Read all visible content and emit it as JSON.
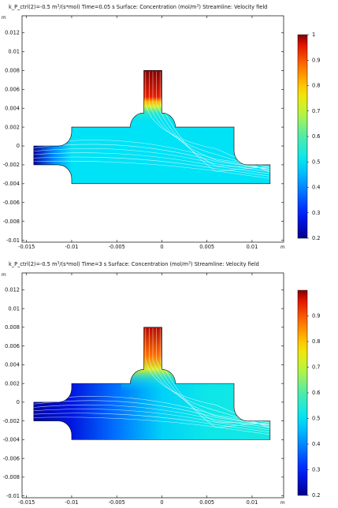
{
  "chart_data": [
    {
      "type": "heatmap",
      "title_prefix": "k_P_ctrl(2)=-0.5 m",
      "title_sup": "3",
      "title_suffix": "/(s*mol) Time=0.05 s  Surface: Concentration (mol/m",
      "title_end": ")  Streamline: Velocity field",
      "x_unit": "m",
      "y_unit": "m",
      "xlim": [
        -0.0155,
        0.0135
      ],
      "ylim": [
        -0.0102,
        0.0138
      ],
      "xticks": [
        -0.015,
        -0.01,
        -0.005,
        0,
        0.005,
        0.01
      ],
      "xtick_labels": [
        "-0.015",
        "-0.01",
        "-0.005",
        "0",
        "0.005",
        "0.01"
      ],
      "yticks": [
        0.012,
        0.01,
        0.008,
        0.006,
        0.004,
        0.002,
        0,
        -0.002,
        -0.004,
        -0.006,
        -0.008,
        -0.01
      ],
      "ytick_labels": [
        "0.012",
        "0.01",
        "0.008",
        "0.006",
        "0.004",
        "0.002",
        "0",
        "-0.002",
        "-0.004",
        "-0.006",
        "-0.008",
        "-0.01"
      ],
      "colorbar": {
        "min": 0.2,
        "max": 1.0,
        "ticks": [
          1,
          0.9,
          0.8,
          0.7,
          0.6,
          0.5,
          0.4,
          0.3,
          0.2
        ],
        "tick_labels": [
          "1",
          "0.9",
          "0.8",
          "0.7",
          "0.6",
          "0.5",
          "0.4",
          "0.3",
          "0.2"
        ]
      },
      "channel_field": [
        {
          "x": -0.0142,
          "c": 0.22
        },
        {
          "x": -0.012,
          "c": 0.4
        },
        {
          "x": -0.01,
          "c": 0.5
        },
        {
          "x": 0.0,
          "c": 0.5
        },
        {
          "x": 0.012,
          "c": 0.5
        }
      ],
      "inlet_field": [
        {
          "y": 0.008,
          "c": 1.0
        },
        {
          "y": 0.0052,
          "c": 0.95
        },
        {
          "y": 0.0047,
          "c": 0.82
        },
        {
          "y": 0.0042,
          "c": 0.72
        },
        {
          "y": 0.0035,
          "c": 0.55
        },
        {
          "y": 0.0025,
          "c": 0.5
        }
      ]
    },
    {
      "type": "heatmap",
      "title_prefix": "k_P_ctrl(2)=-0.5 m",
      "title_sup": "3",
      "title_suffix": "/(s*mol) Time=3 s  Surface: Concentration (mol/m",
      "title_end": ")  Streamline: Velocity field",
      "x_unit": "m",
      "y_unit": "m",
      "xlim": [
        -0.0155,
        0.0135
      ],
      "ylim": [
        -0.0102,
        0.0138
      ],
      "xticks": [
        -0.015,
        -0.01,
        -0.005,
        0,
        0.005,
        0.01
      ],
      "xtick_labels": [
        "-0.015",
        "-0.01",
        "-0.005",
        "0",
        "0.005",
        "0.01"
      ],
      "yticks": [
        0.012,
        0.01,
        0.008,
        0.006,
        0.004,
        0.002,
        0,
        -0.002,
        -0.004,
        -0.006,
        -0.008,
        -0.01
      ],
      "ytick_labels": [
        "0.012",
        "0.01",
        "0.008",
        "0.006",
        "0.004",
        "0.002",
        "0",
        "-0.002",
        "-0.004",
        "-0.006",
        "-0.008",
        "-0.01"
      ],
      "colorbar": {
        "min": 0.2,
        "max": 1.0,
        "ticks": [
          0.9,
          0.8,
          0.7,
          0.6,
          0.5,
          0.4,
          0.3,
          0.2
        ],
        "tick_labels": [
          "0.9",
          "0.8",
          "0.7",
          "0.6",
          "0.5",
          "0.4",
          "0.3",
          "0.2"
        ]
      },
      "channel_field": [
        {
          "x": -0.0142,
          "c": 0.22
        },
        {
          "x": -0.01,
          "c": 0.27
        },
        {
          "x": -0.005,
          "c": 0.38
        },
        {
          "x": 0.0,
          "c": 0.48
        },
        {
          "x": 0.005,
          "c": 0.52
        },
        {
          "x": 0.012,
          "c": 0.53
        }
      ],
      "inlet_field": [
        {
          "y": 0.008,
          "c": 0.98
        },
        {
          "y": 0.005,
          "c": 0.88
        },
        {
          "y": 0.0035,
          "c": 0.72
        },
        {
          "y": 0.0025,
          "c": 0.58
        },
        {
          "y": 0.0015,
          "c": 0.5
        }
      ]
    }
  ]
}
